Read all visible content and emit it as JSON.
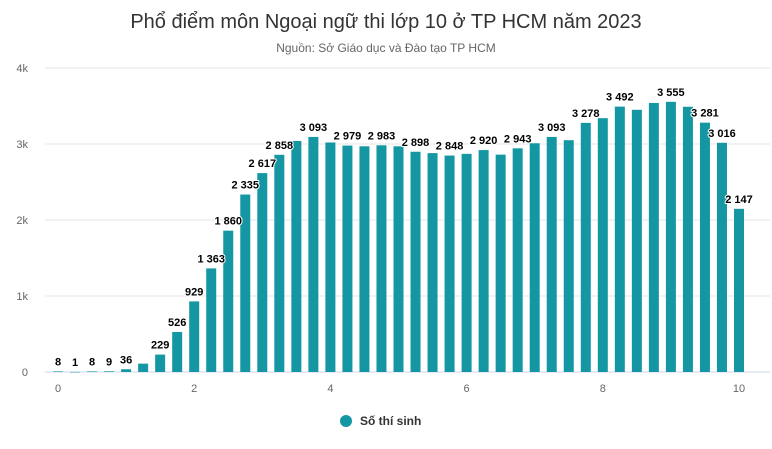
{
  "chart_data": {
    "type": "bar",
    "title": "Phổ điểm môn Ngoại ngữ thi lớp 10 ở TP HCM năm 2023",
    "subtitle": "Nguồn: Sở Giáo dục và Đào tạo TP HCM",
    "x": [
      0,
      0.25,
      0.5,
      0.75,
      1,
      1.25,
      1.5,
      1.75,
      2,
      2.25,
      2.5,
      2.75,
      3,
      3.25,
      3.5,
      3.75,
      4,
      4.25,
      4.5,
      4.75,
      5,
      5.25,
      5.5,
      5.75,
      6,
      6.25,
      6.5,
      6.75,
      7,
      7.25,
      7.5,
      7.75,
      8,
      8.25,
      8.5,
      8.75,
      9,
      9.25,
      9.5,
      9.75,
      10
    ],
    "series": [
      {
        "name": "Số thí sinh",
        "color": "#1497a2",
        "values": [
          8,
          1,
          8,
          9,
          36,
          110,
          229,
          526,
          929,
          1363,
          1860,
          2335,
          2617,
          2858,
          3040,
          3093,
          3020,
          2979,
          2970,
          2983,
          2970,
          2898,
          2880,
          2848,
          2870,
          2920,
          2860,
          2943,
          3010,
          3093,
          3050,
          3278,
          3340,
          3492,
          3450,
          3540,
          3555,
          3490,
          3281,
          3016,
          2147
        ],
        "data_labels": [
          "8",
          "1",
          "8",
          "9",
          "36",
          "",
          "229",
          "526",
          "929",
          "1 363",
          "1 860",
          "2 335",
          "2 617",
          "2 858",
          "",
          "3 093",
          "",
          "2 979",
          "",
          "2 983",
          "",
          "2 898",
          "",
          "2 848",
          "",
          "2 920",
          "",
          "2 943",
          "",
          "3 093",
          "",
          "3 278",
          "",
          "3 492",
          "",
          "",
          "3 555",
          "",
          "3 281",
          "3 016",
          "2 147"
        ]
      }
    ],
    "xlim": [
      0,
      10
    ],
    "ylim": [
      0,
      4000
    ],
    "x_ticks": [
      0,
      2,
      4,
      6,
      8,
      10
    ],
    "x_tick_labels": [
      "0",
      "2",
      "4",
      "6",
      "8",
      "10"
    ],
    "y_ticks": [
      0,
      1000,
      2000,
      3000,
      4000
    ],
    "y_tick_labels": [
      "0",
      "1k",
      "2k",
      "3k",
      "4k"
    ],
    "grid": true,
    "legend": {
      "position": "bottom-center"
    }
  }
}
